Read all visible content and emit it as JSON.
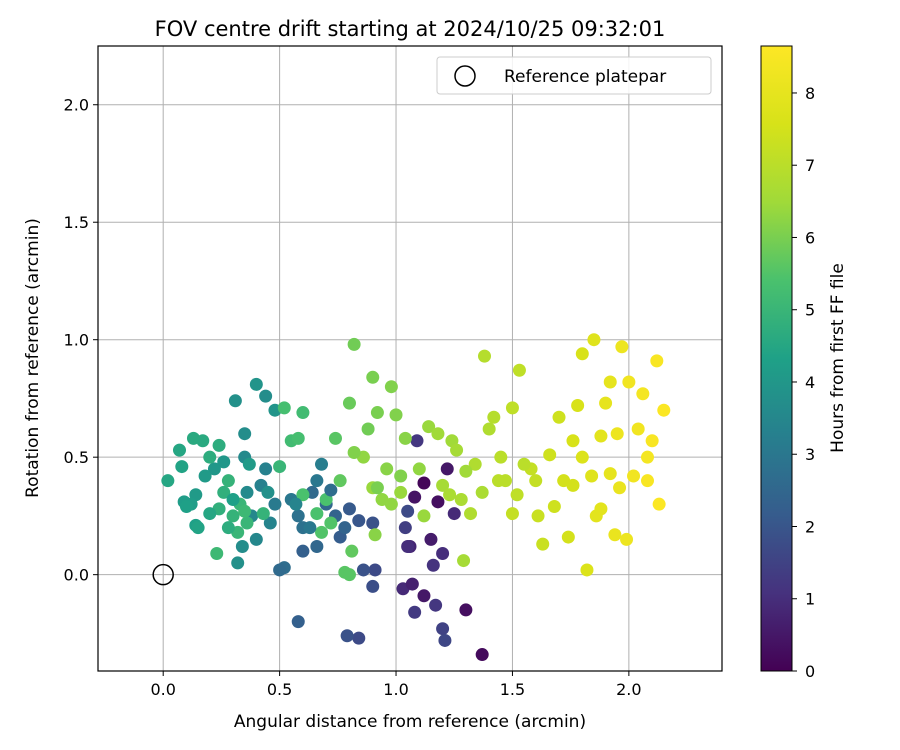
{
  "chart_data": {
    "type": "scatter",
    "title": "FOV centre drift starting at 2024/10/25 09:32:01",
    "xlabel": "Angular distance from reference (arcmin)",
    "ylabel": "Rotation from reference (arcmin)",
    "xlim": [
      -0.28,
      2.4
    ],
    "ylim": [
      -0.41,
      2.25
    ],
    "xticks": [
      "0.0",
      "0.5",
      "1.0",
      "1.5",
      "2.0"
    ],
    "xtick_values": [
      0,
      0.5,
      1.0,
      1.5,
      2.0
    ],
    "yticks": [
      "0.0",
      "0.5",
      "1.0",
      "1.5",
      "2.0"
    ],
    "ytick_values": [
      0,
      0.5,
      1.0,
      1.5,
      2.0
    ],
    "grid": true,
    "legend": {
      "position": "top-right",
      "entries": [
        "Reference platepar"
      ]
    },
    "colorbar": {
      "label": "Hours from first FF file",
      "colormap": "viridis",
      "range": [
        0,
        8.65
      ],
      "ticks": [
        "0",
        "1",
        "2",
        "3",
        "4",
        "5",
        "6",
        "7",
        "8"
      ],
      "tick_values": [
        0,
        1,
        2,
        3,
        4,
        5,
        6,
        7,
        8
      ]
    },
    "reference_point": {
      "name": "Reference platepar",
      "x": 0.0,
      "y": 0.0
    },
    "points": [
      {
        "x": 1.12,
        "y": 0.39,
        "t": 0.1
      },
      {
        "x": 1.18,
        "y": 0.31,
        "t": 0.3
      },
      {
        "x": 1.22,
        "y": 0.45,
        "t": 0.5
      },
      {
        "x": 1.15,
        "y": 0.15,
        "t": 0.6
      },
      {
        "x": 1.08,
        "y": 0.33,
        "t": 0.4
      },
      {
        "x": 1.06,
        "y": 0.12,
        "t": 0.8
      },
      {
        "x": 1.2,
        "y": 0.09,
        "t": 1.0
      },
      {
        "x": 1.16,
        "y": 0.04,
        "t": 1.1
      },
      {
        "x": 1.03,
        "y": -0.06,
        "t": 0.9
      },
      {
        "x": 1.07,
        "y": -0.04,
        "t": 0.7
      },
      {
        "x": 1.12,
        "y": -0.09,
        "t": 0.5
      },
      {
        "x": 1.17,
        "y": -0.13,
        "t": 1.2
      },
      {
        "x": 1.08,
        "y": -0.16,
        "t": 1.3
      },
      {
        "x": 1.3,
        "y": -0.15,
        "t": 0.3
      },
      {
        "x": 1.37,
        "y": -0.34,
        "t": 0.2
      },
      {
        "x": 1.2,
        "y": -0.23,
        "t": 1.5
      },
      {
        "x": 1.21,
        "y": -0.28,
        "t": 1.6
      },
      {
        "x": 1.04,
        "y": 0.2,
        "t": 1.4
      },
      {
        "x": 1.09,
        "y": 0.57,
        "t": 1.2
      },
      {
        "x": 1.05,
        "y": 0.12,
        "t": 1.0
      },
      {
        "x": 1.25,
        "y": 0.26,
        "t": 0.9
      },
      {
        "x": 1.05,
        "y": 0.27,
        "t": 1.7
      },
      {
        "x": 0.84,
        "y": -0.27,
        "t": 1.7
      },
      {
        "x": 0.79,
        "y": -0.26,
        "t": 1.9
      },
      {
        "x": 0.58,
        "y": -0.2,
        "t": 2.3
      },
      {
        "x": 0.91,
        "y": 0.02,
        "t": 1.7
      },
      {
        "x": 0.9,
        "y": -0.05,
        "t": 1.8
      },
      {
        "x": 0.86,
        "y": 0.02,
        "t": 1.9
      },
      {
        "x": 0.84,
        "y": 0.23,
        "t": 2.0
      },
      {
        "x": 0.8,
        "y": 0.28,
        "t": 2.1
      },
      {
        "x": 0.76,
        "y": 0.16,
        "t": 2.2
      },
      {
        "x": 0.9,
        "y": 0.22,
        "t": 1.9
      },
      {
        "x": 0.74,
        "y": 0.25,
        "t": 2.4
      },
      {
        "x": 0.7,
        "y": 0.3,
        "t": 2.5
      },
      {
        "x": 0.64,
        "y": 0.35,
        "t": 2.6
      },
      {
        "x": 0.6,
        "y": 0.1,
        "t": 2.3
      },
      {
        "x": 0.52,
        "y": 0.03,
        "t": 2.7
      },
      {
        "x": 0.5,
        "y": 0.02,
        "t": 2.6
      },
      {
        "x": 0.6,
        "y": 0.2,
        "t": 2.8
      },
      {
        "x": 0.58,
        "y": 0.25,
        "t": 2.8
      },
      {
        "x": 0.55,
        "y": 0.32,
        "t": 3.0
      },
      {
        "x": 0.66,
        "y": 0.4,
        "t": 3.0
      },
      {
        "x": 0.68,
        "y": 0.47,
        "t": 3.2
      },
      {
        "x": 0.48,
        "y": 0.3,
        "t": 3.1
      },
      {
        "x": 0.44,
        "y": 0.45,
        "t": 3.3
      },
      {
        "x": 0.42,
        "y": 0.38,
        "t": 3.3
      },
      {
        "x": 0.46,
        "y": 0.22,
        "t": 3.4
      },
      {
        "x": 0.4,
        "y": 0.15,
        "t": 3.5
      },
      {
        "x": 0.38,
        "y": 0.25,
        "t": 3.5
      },
      {
        "x": 0.36,
        "y": 0.35,
        "t": 3.6
      },
      {
        "x": 0.34,
        "y": 0.12,
        "t": 3.7
      },
      {
        "x": 0.32,
        "y": 0.05,
        "t": 3.8
      },
      {
        "x": 0.35,
        "y": 0.5,
        "t": 3.6
      },
      {
        "x": 0.35,
        "y": 0.6,
        "t": 3.7
      },
      {
        "x": 0.4,
        "y": 0.81,
        "t": 3.9
      },
      {
        "x": 0.44,
        "y": 0.76,
        "t": 3.7
      },
      {
        "x": 0.31,
        "y": 0.74,
        "t": 3.8
      },
      {
        "x": 0.48,
        "y": 0.7,
        "t": 3.9
      },
      {
        "x": 0.26,
        "y": 0.48,
        "t": 4.0
      },
      {
        "x": 0.22,
        "y": 0.45,
        "t": 4.0
      },
      {
        "x": 0.18,
        "y": 0.42,
        "t": 4.1
      },
      {
        "x": 0.14,
        "y": 0.34,
        "t": 4.1
      },
      {
        "x": 0.12,
        "y": 0.3,
        "t": 4.2
      },
      {
        "x": 0.09,
        "y": 0.31,
        "t": 4.2
      },
      {
        "x": 0.1,
        "y": 0.29,
        "t": 4.3
      },
      {
        "x": 0.14,
        "y": 0.21,
        "t": 4.3
      },
      {
        "x": 0.15,
        "y": 0.2,
        "t": 4.4
      },
      {
        "x": 0.08,
        "y": 0.46,
        "t": 4.4
      },
      {
        "x": 0.07,
        "y": 0.53,
        "t": 4.5
      },
      {
        "x": 0.02,
        "y": 0.4,
        "t": 4.5
      },
      {
        "x": 0.13,
        "y": 0.58,
        "t": 4.6
      },
      {
        "x": 0.17,
        "y": 0.57,
        "t": 4.6
      },
      {
        "x": 0.2,
        "y": 0.5,
        "t": 4.7
      },
      {
        "x": 0.24,
        "y": 0.55,
        "t": 4.7
      },
      {
        "x": 0.24,
        "y": 0.28,
        "t": 4.8
      },
      {
        "x": 0.26,
        "y": 0.35,
        "t": 4.8
      },
      {
        "x": 0.28,
        "y": 0.4,
        "t": 4.9
      },
      {
        "x": 0.3,
        "y": 0.25,
        "t": 4.9
      },
      {
        "x": 0.32,
        "y": 0.18,
        "t": 5.0
      },
      {
        "x": 0.33,
        "y": 0.3,
        "t": 5.0
      },
      {
        "x": 0.36,
        "y": 0.22,
        "t": 5.0
      },
      {
        "x": 0.23,
        "y": 0.09,
        "t": 5.1
      },
      {
        "x": 0.35,
        "y": 0.27,
        "t": 5.1
      },
      {
        "x": 0.55,
        "y": 0.57,
        "t": 5.2
      },
      {
        "x": 0.6,
        "y": 0.69,
        "t": 5.2
      },
      {
        "x": 0.52,
        "y": 0.71,
        "t": 5.3
      },
      {
        "x": 0.58,
        "y": 0.58,
        "t": 5.3
      },
      {
        "x": 0.66,
        "y": 0.26,
        "t": 5.4
      },
      {
        "x": 0.7,
        "y": 0.32,
        "t": 5.4
      },
      {
        "x": 0.72,
        "y": 0.22,
        "t": 5.5
      },
      {
        "x": 0.78,
        "y": 0.01,
        "t": 5.6
      },
      {
        "x": 0.8,
        "y": 0.0,
        "t": 5.6
      },
      {
        "x": 0.81,
        "y": 0.1,
        "t": 5.7
      },
      {
        "x": 0.74,
        "y": 0.58,
        "t": 5.6
      },
      {
        "x": 0.8,
        "y": 0.73,
        "t": 5.8
      },
      {
        "x": 0.82,
        "y": 0.98,
        "t": 5.9
      },
      {
        "x": 0.88,
        "y": 0.62,
        "t": 5.9
      },
      {
        "x": 0.92,
        "y": 0.69,
        "t": 6.0
      },
      {
        "x": 0.9,
        "y": 0.84,
        "t": 6.0
      },
      {
        "x": 0.98,
        "y": 0.8,
        "t": 6.1
      },
      {
        "x": 1.0,
        "y": 0.68,
        "t": 6.1
      },
      {
        "x": 1.04,
        "y": 0.58,
        "t": 6.2
      },
      {
        "x": 0.96,
        "y": 0.45,
        "t": 6.2
      },
      {
        "x": 0.94,
        "y": 0.32,
        "t": 6.3
      },
      {
        "x": 0.98,
        "y": 0.3,
        "t": 6.3
      },
      {
        "x": 1.02,
        "y": 0.35,
        "t": 6.4
      },
      {
        "x": 0.9,
        "y": 0.37,
        "t": 6.4
      },
      {
        "x": 0.86,
        "y": 0.5,
        "t": 6.3
      },
      {
        "x": 0.82,
        "y": 0.52,
        "t": 6.1
      },
      {
        "x": 0.91,
        "y": 0.17,
        "t": 6.2
      },
      {
        "x": 1.14,
        "y": 0.63,
        "t": 6.4
      },
      {
        "x": 1.18,
        "y": 0.6,
        "t": 6.5
      },
      {
        "x": 1.24,
        "y": 0.57,
        "t": 6.5
      },
      {
        "x": 1.26,
        "y": 0.53,
        "t": 6.6
      },
      {
        "x": 1.2,
        "y": 0.38,
        "t": 6.6
      },
      {
        "x": 1.23,
        "y": 0.34,
        "t": 6.7
      },
      {
        "x": 1.29,
        "y": 0.06,
        "t": 6.6
      },
      {
        "x": 1.32,
        "y": 0.26,
        "t": 6.8
      },
      {
        "x": 1.28,
        "y": 0.32,
        "t": 6.7
      },
      {
        "x": 1.34,
        "y": 0.47,
        "t": 6.8
      },
      {
        "x": 1.38,
        "y": 0.93,
        "t": 6.9
      },
      {
        "x": 1.42,
        "y": 0.67,
        "t": 6.9
      },
      {
        "x": 1.45,
        "y": 0.5,
        "t": 7.0
      },
      {
        "x": 1.44,
        "y": 0.4,
        "t": 7.0
      },
      {
        "x": 1.5,
        "y": 0.71,
        "t": 7.1
      },
      {
        "x": 1.53,
        "y": 0.87,
        "t": 7.1
      },
      {
        "x": 1.52,
        "y": 0.34,
        "t": 7.1
      },
      {
        "x": 1.5,
        "y": 0.26,
        "t": 7.2
      },
      {
        "x": 1.58,
        "y": 0.45,
        "t": 7.2
      },
      {
        "x": 1.61,
        "y": 0.25,
        "t": 7.3
      },
      {
        "x": 1.63,
        "y": 0.13,
        "t": 7.3
      },
      {
        "x": 1.66,
        "y": 0.51,
        "t": 7.4
      },
      {
        "x": 1.68,
        "y": 0.29,
        "t": 7.4
      },
      {
        "x": 1.72,
        "y": 0.4,
        "t": 7.5
      },
      {
        "x": 1.74,
        "y": 0.16,
        "t": 7.5
      },
      {
        "x": 1.76,
        "y": 0.57,
        "t": 7.6
      },
      {
        "x": 1.78,
        "y": 0.72,
        "t": 7.6
      },
      {
        "x": 1.8,
        "y": 0.5,
        "t": 7.7
      },
      {
        "x": 1.82,
        "y": 0.02,
        "t": 7.7
      },
      {
        "x": 1.84,
        "y": 0.42,
        "t": 7.8
      },
      {
        "x": 1.85,
        "y": 1.0,
        "t": 7.8
      },
      {
        "x": 1.86,
        "y": 0.25,
        "t": 7.9
      },
      {
        "x": 1.88,
        "y": 0.59,
        "t": 7.9
      },
      {
        "x": 1.9,
        "y": 0.73,
        "t": 8.0
      },
      {
        "x": 1.92,
        "y": 0.43,
        "t": 8.0
      },
      {
        "x": 1.94,
        "y": 0.17,
        "t": 8.1
      },
      {
        "x": 1.96,
        "y": 0.37,
        "t": 8.1
      },
      {
        "x": 1.97,
        "y": 0.97,
        "t": 8.2
      },
      {
        "x": 1.99,
        "y": 0.15,
        "t": 8.2
      },
      {
        "x": 2.02,
        "y": 0.42,
        "t": 8.3
      },
      {
        "x": 2.04,
        "y": 0.62,
        "t": 8.3
      },
      {
        "x": 2.06,
        "y": 0.77,
        "t": 8.4
      },
      {
        "x": 2.08,
        "y": 0.5,
        "t": 8.4
      },
      {
        "x": 2.1,
        "y": 0.57,
        "t": 8.5
      },
      {
        "x": 2.12,
        "y": 0.91,
        "t": 8.5
      },
      {
        "x": 2.13,
        "y": 0.3,
        "t": 8.6
      },
      {
        "x": 2.15,
        "y": 0.7,
        "t": 8.6
      },
      {
        "x": 1.8,
        "y": 0.94,
        "t": 7.6
      },
      {
        "x": 1.7,
        "y": 0.67,
        "t": 7.4
      },
      {
        "x": 1.55,
        "y": 0.47,
        "t": 7.0
      },
      {
        "x": 1.47,
        "y": 0.4,
        "t": 7.0
      },
      {
        "x": 1.37,
        "y": 0.35,
        "t": 6.7
      },
      {
        "x": 1.4,
        "y": 0.62,
        "t": 6.8
      },
      {
        "x": 1.3,
        "y": 0.44,
        "t": 6.5
      },
      {
        "x": 1.1,
        "y": 0.45,
        "t": 6.3
      },
      {
        "x": 1.12,
        "y": 0.25,
        "t": 6.4
      },
      {
        "x": 1.02,
        "y": 0.42,
        "t": 6.1
      },
      {
        "x": 0.92,
        "y": 0.37,
        "t": 6.0
      },
      {
        "x": 0.76,
        "y": 0.4,
        "t": 5.7
      },
      {
        "x": 0.68,
        "y": 0.18,
        "t": 5.5
      },
      {
        "x": 0.6,
        "y": 0.34,
        "t": 5.4
      },
      {
        "x": 0.5,
        "y": 0.46,
        "t": 5.0
      },
      {
        "x": 0.43,
        "y": 0.26,
        "t": 4.9
      },
      {
        "x": 0.28,
        "y": 0.2,
        "t": 4.7
      },
      {
        "x": 0.2,
        "y": 0.26,
        "t": 4.5
      },
      {
        "x": 0.3,
        "y": 0.32,
        "t": 4.3
      },
      {
        "x": 0.37,
        "y": 0.47,
        "t": 4.1
      },
      {
        "x": 0.45,
        "y": 0.35,
        "t": 3.8
      },
      {
        "x": 0.57,
        "y": 0.3,
        "t": 3.4
      },
      {
        "x": 0.63,
        "y": 0.2,
        "t": 3.0
      },
      {
        "x": 0.72,
        "y": 0.36,
        "t": 2.7
      },
      {
        "x": 0.78,
        "y": 0.2,
        "t": 2.4
      },
      {
        "x": 0.66,
        "y": 0.12,
        "t": 2.5
      },
      {
        "x": 1.95,
        "y": 0.6,
        "t": 8.2
      },
      {
        "x": 1.88,
        "y": 0.28,
        "t": 7.9
      },
      {
        "x": 1.76,
        "y": 0.38,
        "t": 7.5
      },
      {
        "x": 1.6,
        "y": 0.4,
        "t": 7.2
      },
      {
        "x": 2.0,
        "y": 0.82,
        "t": 8.3
      },
      {
        "x": 2.08,
        "y": 0.4,
        "t": 8.5
      },
      {
        "x": 1.92,
        "y": 0.82,
        "t": 8.0
      }
    ]
  }
}
